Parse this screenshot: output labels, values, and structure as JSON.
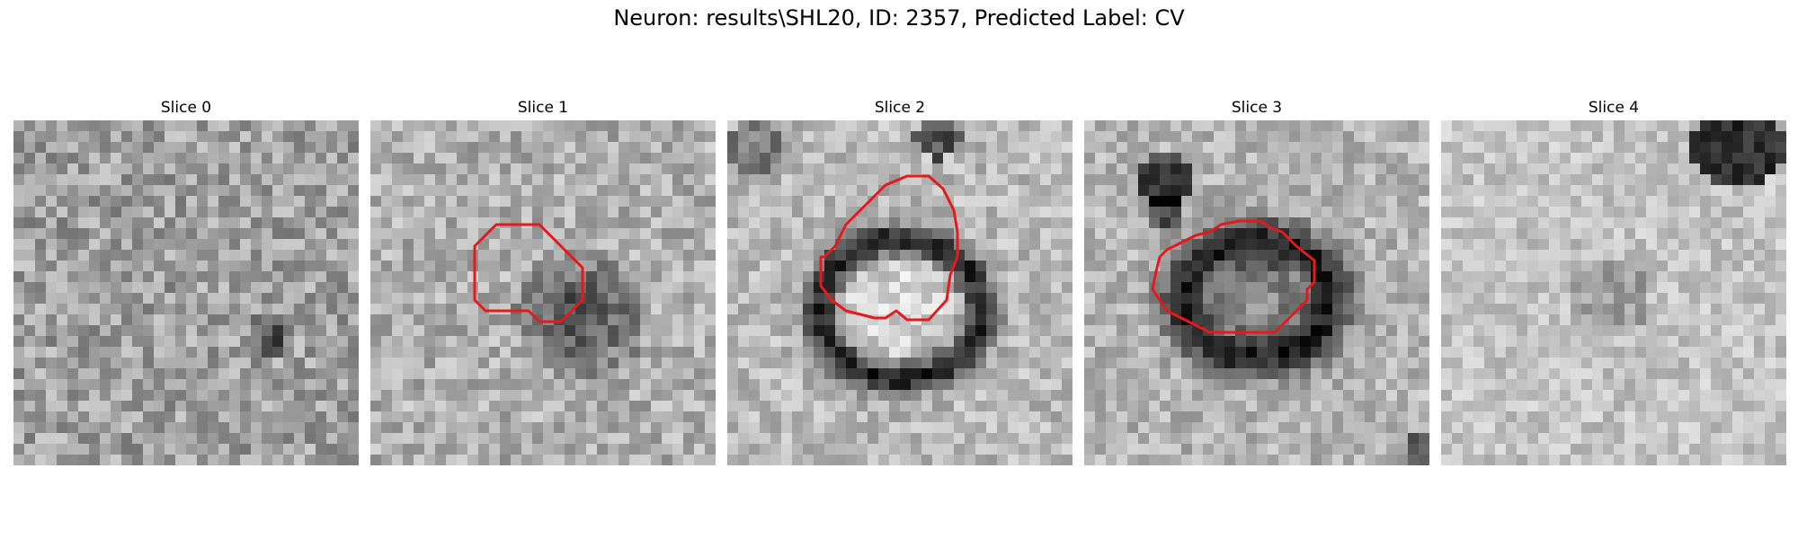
{
  "figure": {
    "title": "Neuron: results\\SHL20, ID: 2357, Predicted Label: CV",
    "panels": [
      {
        "title": "Slice 0",
        "pattern": "noise-with-dark-spot",
        "has_contour": false
      },
      {
        "title": "Slice 1",
        "pattern": "dark-blob",
        "has_contour": true
      },
      {
        "title": "Slice 2",
        "pattern": "dark-ring-bright-center",
        "has_contour": true
      },
      {
        "title": "Slice 3",
        "pattern": "dark-ring-gray-center",
        "has_contour": true
      },
      {
        "title": "Slice 4",
        "pattern": "faint-noise-dark-corner",
        "has_contour": false
      }
    ],
    "colormap": "grayscale",
    "contour_color": "#e41a1c"
  }
}
